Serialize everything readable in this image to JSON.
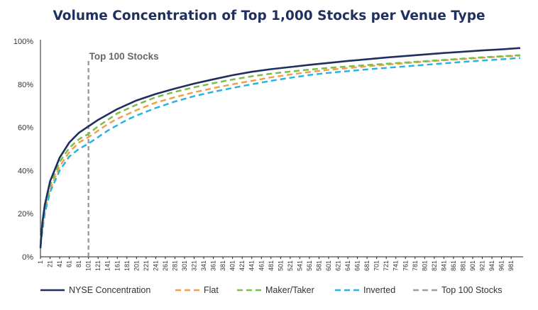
{
  "chart_data": {
    "type": "line",
    "title": "Volume Concentration of Top 1,000 Stocks per Venue Type",
    "xlabel": "",
    "ylabel": "",
    "ylim": [
      0,
      100
    ],
    "y_ticks": [
      "0%",
      "20%",
      "40%",
      "60%",
      "80%",
      "100%"
    ],
    "x_tick_labels": [
      "1",
      "21",
      "41",
      "61",
      "81",
      "101",
      "121",
      "141",
      "161",
      "181",
      "201",
      "221",
      "241",
      "261",
      "281",
      "301",
      "321",
      "341",
      "361",
      "381",
      "401",
      "421",
      "441",
      "461",
      "481",
      "501",
      "521",
      "541",
      "561",
      "581",
      "601",
      "621",
      "641",
      "661",
      "681",
      "701",
      "721",
      "741",
      "761",
      "781",
      "801",
      "821",
      "841",
      "861",
      "881",
      "901",
      "921",
      "941",
      "961",
      "981"
    ],
    "x": [
      1,
      5,
      10,
      21,
      41,
      61,
      81,
      101,
      121,
      141,
      161,
      181,
      201,
      241,
      281,
      321,
      361,
      401,
      441,
      481,
      521,
      561,
      601,
      641,
      681,
      721,
      761,
      801,
      841,
      881,
      921,
      961,
      1000
    ],
    "series": [
      {
        "name": "NYSE Concentration",
        "color": "#1f2f5f",
        "dash": "solid",
        "values": [
          4,
          16,
          24,
          35,
          46,
          53,
          57.5,
          60.5,
          63.5,
          66,
          68.5,
          70.5,
          72.5,
          75.5,
          78,
          80.3,
          82.3,
          84.2,
          85.8,
          87,
          88,
          89,
          89.9,
          90.8,
          91.6,
          92.4,
          93.1,
          93.8,
          94.5,
          95.1,
          95.7,
          96.2,
          96.8
        ]
      },
      {
        "name": "Flat",
        "color": "#f0a04b",
        "dash": "dashed",
        "values": [
          6,
          13,
          21,
          31,
          42,
          48.5,
          53,
          55.5,
          58.5,
          61.5,
          64,
          66,
          68,
          71.5,
          74,
          76.3,
          78.2,
          80,
          81.6,
          83.2,
          84.5,
          85.7,
          86.7,
          87.5,
          88.3,
          89.1,
          89.8,
          90.5,
          91.1,
          91.7,
          92.3,
          92.8,
          93.3
        ]
      },
      {
        "name": "Maker/Taker",
        "color": "#7bbf4b",
        "dash": "dashed",
        "values": [
          7,
          15,
          23,
          33,
          44,
          50.5,
          54.5,
          57,
          60.5,
          63.5,
          66.5,
          68.5,
          70.5,
          74,
          76.5,
          78.6,
          80.5,
          82.2,
          83.7,
          84.9,
          85.9,
          86.8,
          87.6,
          88.3,
          88.9,
          89.5,
          90.1,
          90.7,
          91.3,
          91.9,
          92.5,
          93,
          93.5
        ]
      },
      {
        "name": "Inverted",
        "color": "#27b4e3",
        "dash": "dashed",
        "values": [
          5,
          12,
          20,
          30,
          40,
          46.5,
          50,
          52.5,
          55.5,
          58.5,
          61,
          63.5,
          65.5,
          69,
          72,
          74.5,
          76.5,
          78.3,
          80,
          81.6,
          83,
          84.3,
          85.3,
          86.1,
          86.9,
          87.6,
          88.3,
          89,
          89.7,
          90.4,
          91,
          91.6,
          92.2
        ]
      }
    ],
    "marker": {
      "name": "Top 100 Stocks",
      "x": 101,
      "color": "#9e9e9e",
      "label": "Top 100 Stocks"
    },
    "legend": {
      "position": "bottom",
      "items": [
        "NYSE Concentration",
        "Flat",
        "Maker/Taker",
        "Inverted",
        "Top 100 Stocks"
      ]
    },
    "grid": false
  }
}
